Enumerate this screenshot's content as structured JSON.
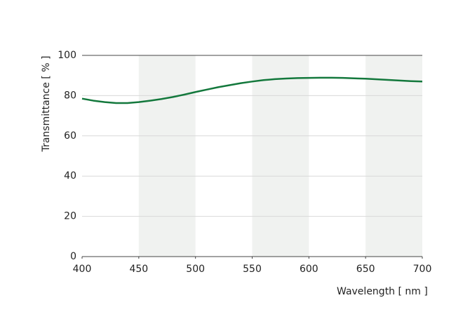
{
  "chart_data": {
    "type": "line",
    "xlabel": "Wavelength [ nm ]",
    "ylabel": "Transmittance [ % ]",
    "x": [
      400,
      410,
      420,
      430,
      440,
      450,
      460,
      470,
      480,
      490,
      500,
      510,
      520,
      530,
      540,
      550,
      560,
      570,
      580,
      590,
      600,
      610,
      620,
      630,
      640,
      650,
      660,
      670,
      680,
      690,
      700
    ],
    "series": [
      {
        "color": "#13783c",
        "values": [
          78.5,
          77.5,
          76.8,
          76.3,
          76.3,
          76.8,
          77.5,
          78.3,
          79.3,
          80.5,
          81.8,
          83,
          84.2,
          85.2,
          86.2,
          87,
          87.7,
          88.2,
          88.5,
          88.7,
          88.8,
          88.9,
          88.9,
          88.8,
          88.6,
          88.4,
          88.1,
          87.8,
          87.5,
          87.2,
          87.0
        ]
      }
    ],
    "xlim": [
      400,
      700
    ],
    "xticks": [
      400,
      450,
      500,
      550,
      600,
      650,
      700
    ],
    "ylim": [
      0,
      100
    ],
    "yticks": [
      0,
      20,
      40,
      60,
      80,
      100
    ],
    "x_bands": [
      [
        450,
        500
      ],
      [
        550,
        600
      ],
      [
        650,
        700
      ]
    ],
    "band_color": "#f0f2f0",
    "grid": true
  }
}
